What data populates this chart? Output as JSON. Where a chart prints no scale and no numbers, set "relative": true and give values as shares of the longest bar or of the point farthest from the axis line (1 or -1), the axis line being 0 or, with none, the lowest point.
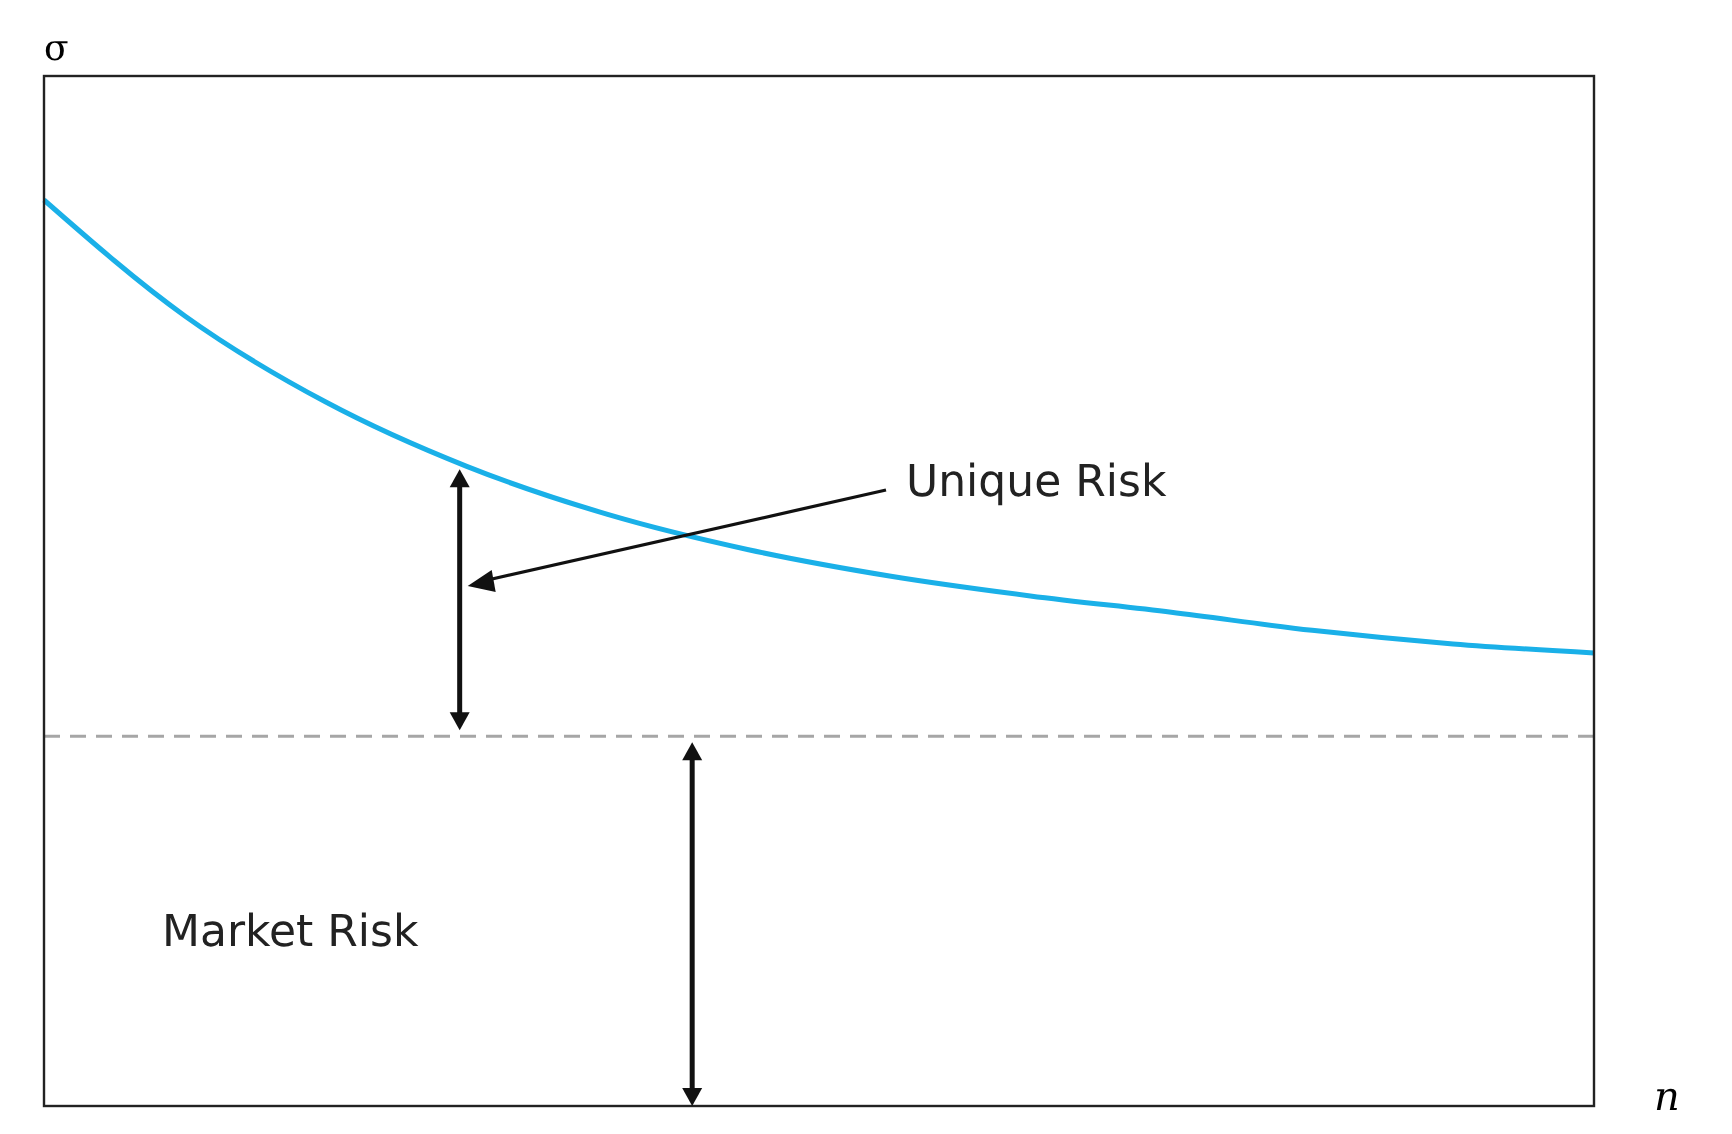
{
  "chart_data": {
    "type": "line",
    "xlabel": "n",
    "ylabel": "σ",
    "relative": true,
    "categories": [
      null,
      null,
      null,
      null,
      null,
      null,
      null,
      null,
      null,
      null,
      null,
      null
    ],
    "series": [
      {
        "color": "#1ab0e8",
        "values": [
          1,
          0.872,
          0.777,
          0.706,
          0.653,
          0.614,
          0.585,
          0.563,
          0.545,
          0.525,
          0.51,
          0.5
        ]
      }
    ],
    "ref_lines": [
      {
        "axis": "y",
        "value": 0.408,
        "color": "#a6a6a6",
        "line_style": "dashed"
      }
    ],
    "annotations": [
      "Unique Risk",
      "Market Risk"
    ],
    "marker": "none",
    "line_style": "solid"
  }
}
